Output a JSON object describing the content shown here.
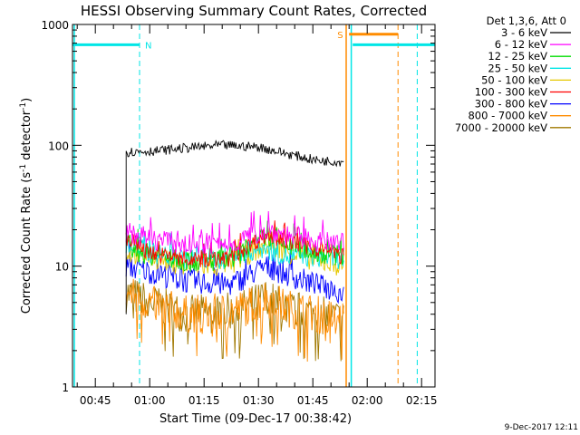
{
  "chart_data": {
    "type": "line",
    "title": "HESSI Observing Summary Count Rates, Corrected",
    "ylabel_main": "Corrected Count Rate (s",
    "ylabel_sup1": "-1",
    "ylabel_mid": " detector",
    "ylabel_sup2": "-1",
    "ylabel_end": ")",
    "xlabel": "Start Time (09-Dec-17 00:38:42)",
    "footer": "9-Dec-2017 12:11",
    "legend_title": "Det 1,3,6, Att 0",
    "y_log": true,
    "ylim": [
      1,
      1000
    ],
    "y_ticks": [
      "1",
      "10",
      "100",
      "1000"
    ],
    "xlim_minutes": [
      38.7,
      138.7
    ],
    "x_ticks": [
      {
        "m": 45,
        "label": "00:45"
      },
      {
        "m": 60,
        "label": "01:00"
      },
      {
        "m": 75,
        "label": "01:15"
      },
      {
        "m": 90,
        "label": "01:30"
      },
      {
        "m": 105,
        "label": "01:45"
      },
      {
        "m": 120,
        "label": "02:00"
      },
      {
        "m": 135,
        "label": "02:15"
      }
    ],
    "data_start_minutes": 53.5,
    "data_end_minutes": 113.5,
    "series": [
      {
        "name": "3 - 6 keV",
        "color": "#000000",
        "profile": [
          [
            53.5,
            88
          ],
          [
            62,
            90
          ],
          [
            70,
            95
          ],
          [
            80,
            100
          ],
          [
            90,
            97
          ],
          [
            98,
            85
          ],
          [
            106,
            75
          ],
          [
            113.5,
            73
          ]
        ],
        "noise": 0.04,
        "startbase": 4
      },
      {
        "name": "6 - 12 keV",
        "color": "#ff00ff",
        "profile": [
          [
            53.5,
            19
          ],
          [
            60,
            17
          ],
          [
            70,
            15
          ],
          [
            82,
            15
          ],
          [
            86,
            17
          ],
          [
            92,
            20
          ],
          [
            98,
            18
          ],
          [
            106,
            16
          ],
          [
            113.5,
            15
          ]
        ],
        "noise": 0.09
      },
      {
        "name": "12 - 25 keV",
        "color": "#00dd00",
        "profile": [
          [
            53.5,
            14
          ],
          [
            60,
            12.5
          ],
          [
            70,
            11
          ],
          [
            82,
            11
          ],
          [
            86,
            13
          ],
          [
            92,
            17
          ],
          [
            98,
            15
          ],
          [
            106,
            13
          ],
          [
            113.5,
            12
          ]
        ],
        "noise": 0.09
      },
      {
        "name": "25 - 50 keV",
        "color": "#00e6e6",
        "profile": [
          [
            53.5,
            15
          ],
          [
            60,
            13
          ],
          [
            70,
            11.5
          ],
          [
            82,
            11.5
          ],
          [
            86,
            13
          ],
          [
            92,
            14
          ],
          [
            98,
            12
          ],
          [
            106,
            12
          ],
          [
            113.5,
            11.5
          ]
        ],
        "noise": 0.09
      },
      {
        "name": "50 - 100 keV",
        "color": "#e6c800",
        "profile": [
          [
            53.5,
            13
          ],
          [
            60,
            12
          ],
          [
            70,
            10
          ],
          [
            82,
            10
          ],
          [
            86,
            12
          ],
          [
            92,
            15
          ],
          [
            98,
            13
          ],
          [
            106,
            11
          ],
          [
            113.5,
            10
          ]
        ],
        "noise": 0.09
      },
      {
        "name": "100 - 300 keV",
        "color": "#ff0000",
        "profile": [
          [
            53.5,
            17
          ],
          [
            60,
            13
          ],
          [
            70,
            11
          ],
          [
            82,
            11.5
          ],
          [
            86,
            14
          ],
          [
            92,
            18
          ],
          [
            98,
            16
          ],
          [
            106,
            14
          ],
          [
            113.5,
            12
          ]
        ],
        "noise": 0.07
      },
      {
        "name": "300 - 800 keV",
        "color": "#0000ff",
        "profile": [
          [
            53.5,
            10
          ],
          [
            60,
            9
          ],
          [
            70,
            7.5
          ],
          [
            82,
            7
          ],
          [
            86,
            8
          ],
          [
            92,
            10
          ],
          [
            98,
            8.5
          ],
          [
            106,
            7
          ],
          [
            113.5,
            6
          ]
        ],
        "noise": 0.1
      },
      {
        "name": "800 - 7000 keV",
        "color": "#ff8c00",
        "profile": [
          [
            53.5,
            6
          ],
          [
            60,
            5
          ],
          [
            70,
            4
          ],
          [
            82,
            4.2
          ],
          [
            86,
            4.5
          ],
          [
            92,
            5.5
          ],
          [
            98,
            4.5
          ],
          [
            106,
            4
          ],
          [
            113.5,
            3.6
          ]
        ],
        "noise": 0.16
      },
      {
        "name": "7000 - 20000 keV",
        "color": "#a07800",
        "profile": [
          [
            53.5,
            6
          ],
          [
            60,
            5
          ],
          [
            70,
            4
          ],
          [
            82,
            4.2
          ],
          [
            86,
            4.5
          ],
          [
            92,
            5.5
          ],
          [
            98,
            4.5
          ],
          [
            106,
            4
          ],
          [
            113.5,
            3.6
          ]
        ],
        "noise": 0.16
      }
    ],
    "annotations": {
      "night_bars": [
        {
          "label": "N",
          "color": "#00e6e6",
          "from": 38.7,
          "to": 57.2,
          "y": 680
        },
        {
          "label": "",
          "color": "#00e6e6",
          "from": 116.0,
          "to": 138.7,
          "y": 680
        }
      ],
      "saa_bars": [
        {
          "label": "S",
          "color": "#ff8c00",
          "from": 115.0,
          "to": 128.5,
          "y": 830
        }
      ],
      "vlines_solid": [
        {
          "m": 39.2,
          "color": "#00e6e6"
        },
        {
          "m": 114.2,
          "color": "#ff8c00"
        },
        {
          "m": 115.6,
          "color": "#00e6e6"
        }
      ],
      "vlines_dashed": [
        {
          "m": 57.2,
          "color": "#00e6e6"
        },
        {
          "m": 128.5,
          "color": "#ff8c00"
        },
        {
          "m": 133.8,
          "color": "#00e6e6"
        }
      ]
    }
  }
}
